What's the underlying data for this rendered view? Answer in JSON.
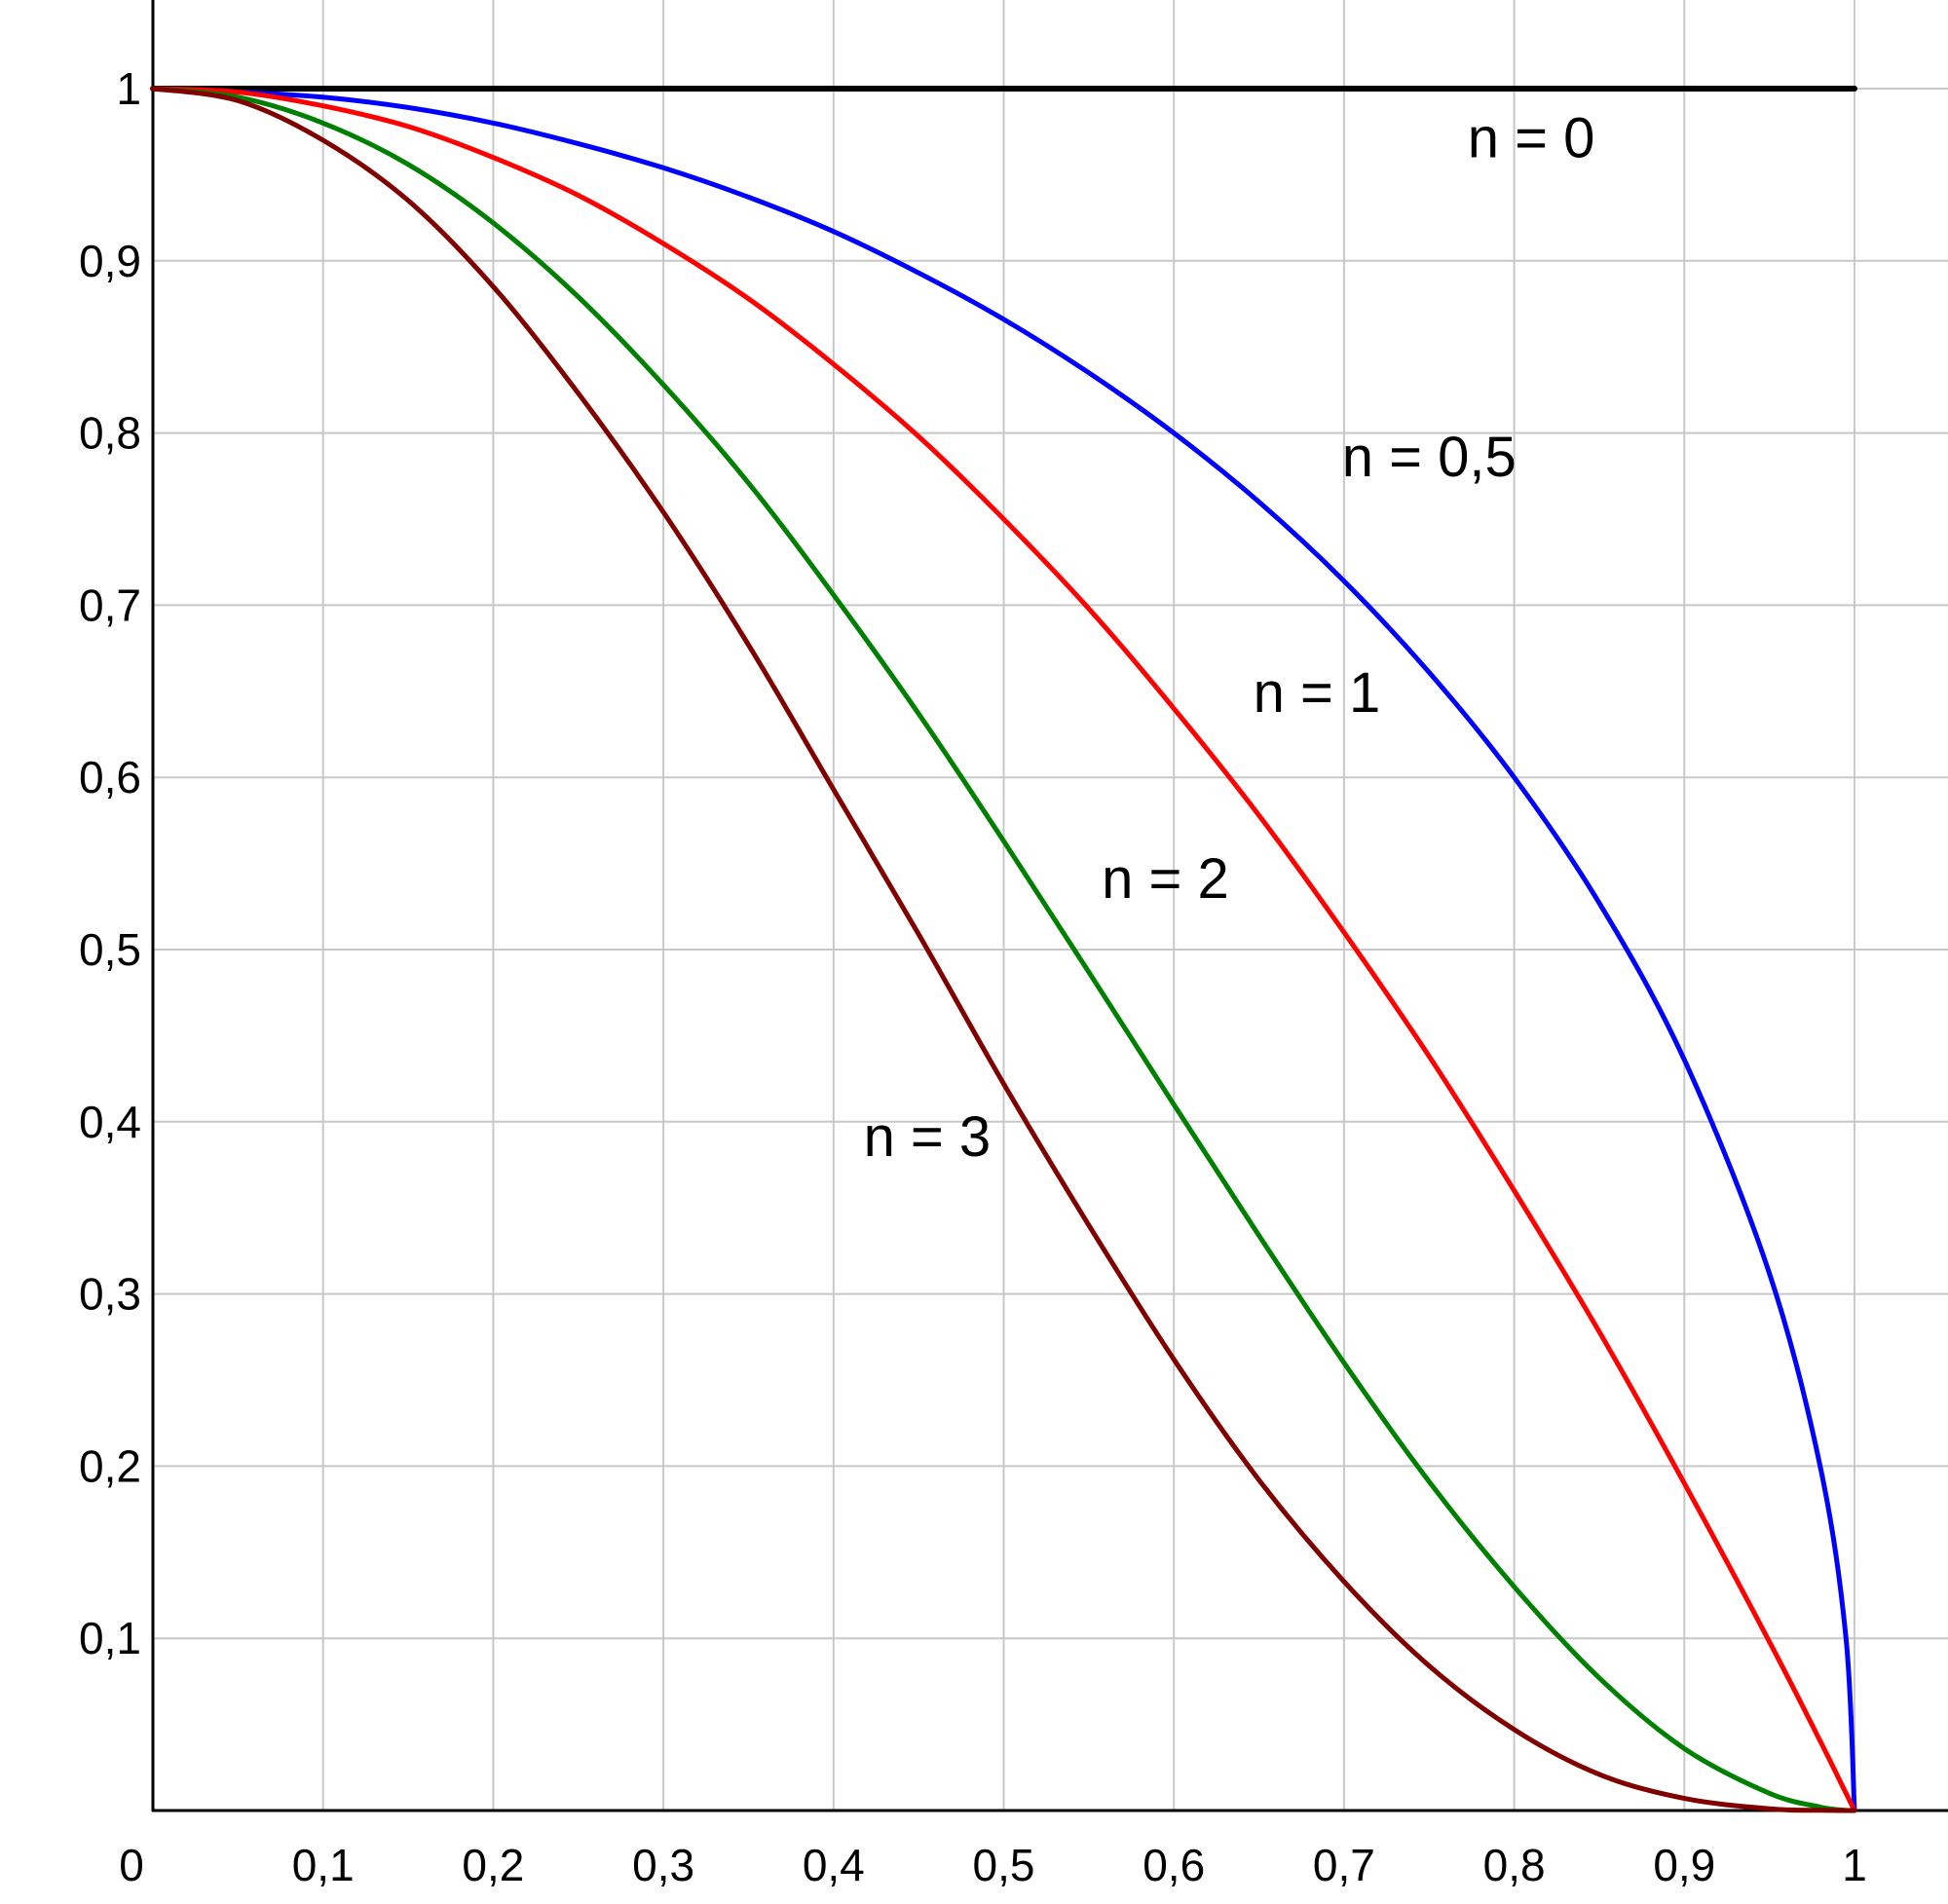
{
  "chart_data": {
    "type": "line",
    "title": "",
    "xlabel": "",
    "ylabel": "",
    "xlim": [
      0,
      1.1
    ],
    "ylim": [
      0,
      1.0
    ],
    "grid": true,
    "x_ticks": [
      {
        "value": 0,
        "label": "0"
      },
      {
        "value": 0.1,
        "label": "0,1"
      },
      {
        "value": 0.2,
        "label": "0,2"
      },
      {
        "value": 0.3,
        "label": "0,3"
      },
      {
        "value": 0.4,
        "label": "0,4"
      },
      {
        "value": 0.5,
        "label": "0,5"
      },
      {
        "value": 0.6,
        "label": "0,6"
      },
      {
        "value": 0.7,
        "label": "0,7"
      },
      {
        "value": 0.8,
        "label": "0,8"
      },
      {
        "value": 0.9,
        "label": "0,9"
      },
      {
        "value": 1,
        "label": "1"
      }
    ],
    "y_ticks": [
      {
        "value": 0.1,
        "label": "0,1"
      },
      {
        "value": 0.2,
        "label": "0,2"
      },
      {
        "value": 0.3,
        "label": "0,3"
      },
      {
        "value": 0.4,
        "label": "0,4"
      },
      {
        "value": 0.5,
        "label": "0,5"
      },
      {
        "value": 0.6,
        "label": "0,6"
      },
      {
        "value": 0.7,
        "label": "0,7"
      },
      {
        "value": 0.8,
        "label": "0,8"
      },
      {
        "value": 0.9,
        "label": "0,9"
      },
      {
        "value": 1,
        "label": "1"
      }
    ],
    "x": [
      0,
      0.05,
      0.1,
      0.15,
      0.2,
      0.25,
      0.3,
      0.35,
      0.4,
      0.45,
      0.5,
      0.55,
      0.6,
      0.65,
      0.7,
      0.75,
      0.8,
      0.85,
      0.9,
      0.95,
      0.98,
      0.995,
      1
    ],
    "series": [
      {
        "label": "n = 0",
        "color": "#000000",
        "label_at": [
          0.81,
          0.96
        ],
        "values": [
          1,
          1,
          1,
          1,
          1,
          1,
          1,
          1,
          1,
          1,
          1,
          1,
          1,
          1,
          1,
          1,
          1,
          1,
          1,
          1,
          1,
          1,
          1
        ]
      },
      {
        "label": "n = 0,5",
        "color": "#0000ff",
        "label_at": [
          0.75,
          0.775
        ],
        "values": [
          1,
          0.998,
          0.995,
          0.989,
          0.98,
          0.968,
          0.954,
          0.937,
          0.917,
          0.893,
          0.866,
          0.835,
          0.8,
          0.76,
          0.714,
          0.661,
          0.6,
          0.527,
          0.436,
          0.312,
          0.199,
          0.1,
          0
        ]
      },
      {
        "label": "n = 1",
        "color": "#ff0000",
        "label_at": [
          0.684,
          0.638
        ],
        "values": [
          1,
          0.998,
          0.99,
          0.978,
          0.96,
          0.938,
          0.91,
          0.878,
          0.84,
          0.798,
          0.75,
          0.698,
          0.64,
          0.578,
          0.51,
          0.438,
          0.36,
          0.278,
          0.19,
          0.098,
          0.04,
          0.01,
          0
        ]
      },
      {
        "label": "n = 2",
        "color": "#008000",
        "label_at": [
          0.595,
          0.53
        ],
        "values": [
          1,
          0.995,
          0.98,
          0.956,
          0.922,
          0.879,
          0.828,
          0.771,
          0.706,
          0.637,
          0.563,
          0.487,
          0.41,
          0.334,
          0.26,
          0.191,
          0.13,
          0.077,
          0.036,
          0.01,
          0.002,
          0.0001,
          0
        ]
      },
      {
        "label": "n = 3",
        "color": "#800000",
        "label_at": [
          0.455,
          0.38
        ],
        "values": [
          1,
          0.993,
          0.97,
          0.935,
          0.885,
          0.823,
          0.754,
          0.677,
          0.593,
          0.509,
          0.422,
          0.34,
          0.262,
          0.192,
          0.133,
          0.084,
          0.047,
          0.021,
          0.007,
          0.001,
          0.0001,
          0.0,
          0
        ]
      }
    ]
  }
}
